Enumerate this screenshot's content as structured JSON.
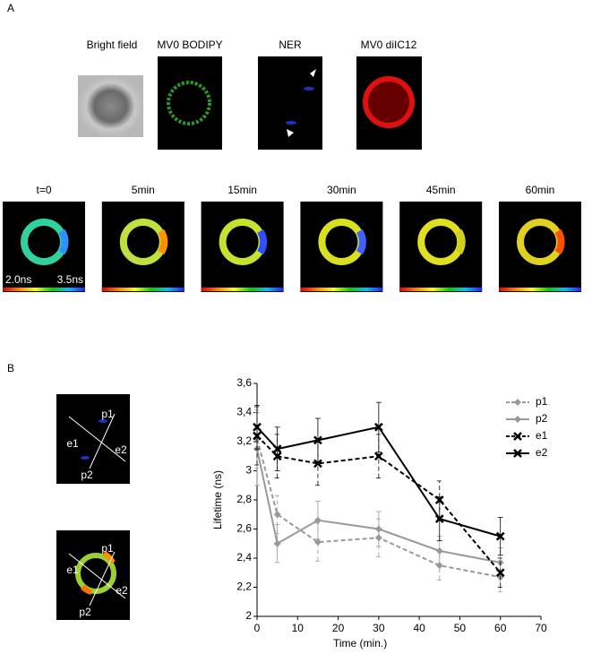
{
  "panel_labels": [
    "A",
    "B"
  ],
  "image_captions": [
    "Bright field",
    "MV0 BODIPY",
    "NER",
    "MV0 diIC12"
  ],
  "timepoints": [
    "t=0",
    "5min",
    "15min",
    "30min",
    "45min",
    "60min"
  ],
  "scale_labels": [
    "2.0ns",
    "3.5ns"
  ],
  "region_labels": [
    "p1",
    "e1",
    "e2",
    "p2"
  ],
  "chart_data": {
    "type": "line",
    "x": [
      0,
      5,
      15,
      30,
      45,
      60
    ],
    "series": [
      {
        "name": "p1",
        "color": "#999999",
        "linestyle": "dashed",
        "marker": "diamond",
        "values": [
          3.22,
          2.7,
          2.51,
          2.54,
          2.35,
          2.27
        ],
        "errors": [
          0.2,
          0.13,
          0.13,
          0.13,
          0.1,
          0.1
        ]
      },
      {
        "name": "p2",
        "color": "#999999",
        "linestyle": "solid",
        "marker": "diamond",
        "values": [
          3.15,
          2.5,
          2.66,
          2.6,
          2.45,
          2.37
        ],
        "errors": [
          0.25,
          0.13,
          0.13,
          0.12,
          0.1,
          0.1
        ]
      },
      {
        "name": "e1",
        "color": "#000000",
        "linestyle": "dashed",
        "marker": "x",
        "values": [
          3.24,
          3.1,
          3.05,
          3.1,
          2.8,
          2.3
        ],
        "errors": [
          0.2,
          0.15,
          0.15,
          0.15,
          0.13,
          0.1
        ]
      },
      {
        "name": "e2",
        "color": "#000000",
        "linestyle": "solid",
        "marker": "x",
        "values": [
          3.3,
          3.15,
          3.21,
          3.3,
          2.67,
          2.55
        ],
        "errors": [
          0.15,
          0.15,
          0.15,
          0.17,
          0.15,
          0.13
        ]
      }
    ],
    "xlabel": "Time (min.)",
    "ylabel": "Lifetime (ns)",
    "xlim": [
      0,
      70
    ],
    "xticks": [
      0,
      10,
      20,
      30,
      40,
      50,
      60,
      70
    ],
    "ylim": [
      2,
      3.6
    ],
    "yticks": [
      2,
      {
        "value": 2.2,
        "label": "2,2"
      },
      {
        "value": 2.4,
        "label": "2,4"
      },
      {
        "value": 2.6,
        "label": "2,6"
      },
      {
        "value": 2.8,
        "label": "2,8"
      },
      3,
      {
        "value": 3.2,
        "label": "3,2"
      },
      {
        "value": 3.4,
        "label": "3,4"
      },
      {
        "value": 3.6,
        "label": "3,6"
      }
    ],
    "legend": "upper right"
  }
}
